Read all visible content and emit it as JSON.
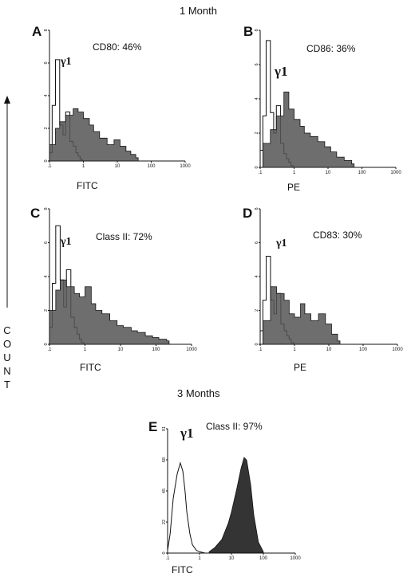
{
  "headers": {
    "top": "1 Month",
    "bottom": "3 Months"
  },
  "y_axis_label": "COUNT",
  "colors": {
    "ink": "#111111",
    "stipple": "#555555"
  },
  "chart_data": [
    {
      "type": "histogram",
      "panel": "A",
      "annotation": "CD80: 46%",
      "isotype_label": "γ1",
      "xlabel": "FITC",
      "xscale": "log",
      "xlim": [
        0.1,
        1000
      ],
      "x_ticks": [
        ".1",
        "1",
        "10",
        "100",
        "1000"
      ],
      "ylim": [
        0,
        8
      ],
      "y_ticks": [
        "0",
        "2",
        "4",
        "6",
        "8"
      ],
      "series": [
        {
          "role": "isotype",
          "x": [
            0.1,
            0.12,
            0.15,
            0.2,
            0.25,
            0.3,
            0.4,
            0.5,
            0.6,
            0.7,
            0.8
          ],
          "y": [
            0.5,
            3.4,
            6.2,
            2.2,
            1.6,
            3.0,
            1.2,
            0.9,
            0.5,
            0.3,
            0.1
          ]
        },
        {
          "role": "stained",
          "x": [
            0.1,
            0.15,
            0.2,
            0.3,
            0.5,
            0.7,
            1,
            1.5,
            2,
            3,
            5,
            8,
            12,
            18,
            25,
            35
          ],
          "y": [
            1.0,
            2.0,
            2.4,
            2.8,
            3.2,
            3.0,
            2.6,
            2.2,
            1.8,
            1.4,
            1.0,
            1.3,
            0.9,
            0.6,
            0.4,
            0.2
          ]
        }
      ]
    },
    {
      "type": "histogram",
      "panel": "B",
      "annotation": "CD86: 36%",
      "isotype_label": "γ1",
      "xlabel": "PE",
      "xscale": "log",
      "xlim": [
        0.1,
        1000
      ],
      "x_ticks": [
        ".1",
        "1",
        "10",
        "100",
        "1000"
      ],
      "ylim": [
        0,
        8
      ],
      "y_ticks": [
        "0",
        "2",
        "4",
        "6",
        "8"
      ],
      "series": [
        {
          "role": "isotype",
          "x": [
            0.1,
            0.12,
            0.15,
            0.2,
            0.25,
            0.3,
            0.4,
            0.5,
            0.6,
            0.7,
            0.8
          ],
          "y": [
            1.0,
            3.0,
            7.4,
            3.2,
            2.0,
            3.6,
            1.4,
            0.8,
            0.5,
            0.3,
            0.1
          ]
        },
        {
          "role": "stained",
          "x": [
            0.12,
            0.2,
            0.3,
            0.5,
            0.7,
            1,
            1.5,
            2,
            3,
            5,
            8,
            12,
            18,
            30,
            50
          ],
          "y": [
            1.4,
            2.2,
            3.0,
            4.4,
            3.4,
            2.8,
            2.4,
            2.0,
            1.8,
            1.5,
            1.2,
            0.9,
            0.6,
            0.4,
            0.2
          ]
        }
      ]
    },
    {
      "type": "histogram",
      "panel": "C",
      "annotation": "Class II: 72%",
      "isotype_label": "γ1",
      "xlabel": "FITC",
      "xscale": "log",
      "xlim": [
        0.1,
        1000
      ],
      "x_ticks": [
        ".1",
        "1",
        "10",
        "100",
        "1000"
      ],
      "ylim": [
        0,
        8
      ],
      "y_ticks": [
        "0",
        "2",
        "4",
        "6",
        "8"
      ],
      "series": [
        {
          "role": "isotype",
          "x": [
            0.1,
            0.12,
            0.15,
            0.2,
            0.25,
            0.3,
            0.4,
            0.5,
            0.6,
            0.7,
            0.8
          ],
          "y": [
            1.0,
            3.6,
            7.0,
            3.8,
            2.2,
            4.4,
            1.6,
            1.0,
            0.6,
            0.3,
            0.1
          ]
        },
        {
          "role": "stained",
          "x": [
            0.1,
            0.15,
            0.2,
            0.3,
            0.5,
            0.7,
            1,
            1.5,
            2,
            3,
            5,
            8,
            12,
            20,
            30,
            50,
            80,
            120,
            200
          ],
          "y": [
            2.0,
            3.2,
            3.8,
            3.4,
            3.0,
            2.8,
            3.4,
            2.4,
            2.0,
            1.8,
            1.4,
            1.1,
            1.0,
            0.8,
            0.7,
            0.5,
            0.4,
            0.3,
            0.2
          ]
        }
      ]
    },
    {
      "type": "histogram",
      "panel": "D",
      "annotation": "CD83: 30%",
      "isotype_label": "γ1",
      "xlabel": "PE",
      "xscale": "log",
      "xlim": [
        0.1,
        1000
      ],
      "x_ticks": [
        ".1",
        "1",
        "10",
        "100",
        "1000"
      ],
      "ylim": [
        0,
        8
      ],
      "y_ticks": [
        "0",
        "2",
        "4",
        "6",
        "8"
      ],
      "series": [
        {
          "role": "isotype",
          "x": [
            0.1,
            0.12,
            0.15,
            0.2,
            0.25,
            0.3,
            0.4,
            0.5,
            0.6,
            0.7,
            0.8
          ],
          "y": [
            0.8,
            2.6,
            5.2,
            2.6,
            1.8,
            3.0,
            1.2,
            0.8,
            0.5,
            0.3,
            0.1
          ]
        },
        {
          "role": "stained",
          "x": [
            0.12,
            0.2,
            0.3,
            0.5,
            0.7,
            1,
            1.5,
            2,
            3,
            5,
            8,
            12,
            18
          ],
          "y": [
            1.4,
            3.4,
            3.0,
            2.6,
            1.8,
            1.6,
            2.4,
            1.8,
            1.4,
            1.8,
            1.2,
            0.6,
            0.2
          ]
        }
      ]
    },
    {
      "type": "histogram",
      "panel": "E",
      "annotation": "Class II: 97%",
      "isotype_label": "γ1",
      "xlabel": "FITC",
      "xscale": "log",
      "xlim": [
        0.1,
        1000
      ],
      "x_ticks": [
        ".1",
        "1",
        "10",
        "100",
        "1000"
      ],
      "ylim": [
        0,
        91
      ],
      "y_ticks": [
        "0",
        "22",
        "45",
        "68",
        "91"
      ],
      "series": [
        {
          "role": "isotype",
          "x": [
            0.1,
            0.12,
            0.15,
            0.2,
            0.25,
            0.3,
            0.35,
            0.4,
            0.5,
            0.6,
            0.8,
            1,
            1.5
          ],
          "y": [
            2,
            14,
            40,
            58,
            66,
            60,
            46,
            30,
            14,
            6,
            2,
            1,
            0
          ]
        },
        {
          "role": "stained",
          "x": [
            2,
            3,
            5,
            8,
            10,
            15,
            20,
            25,
            30,
            40,
            50,
            70,
            100
          ],
          "y": [
            1,
            4,
            10,
            22,
            30,
            48,
            62,
            70,
            68,
            50,
            28,
            8,
            1
          ]
        }
      ]
    }
  ]
}
